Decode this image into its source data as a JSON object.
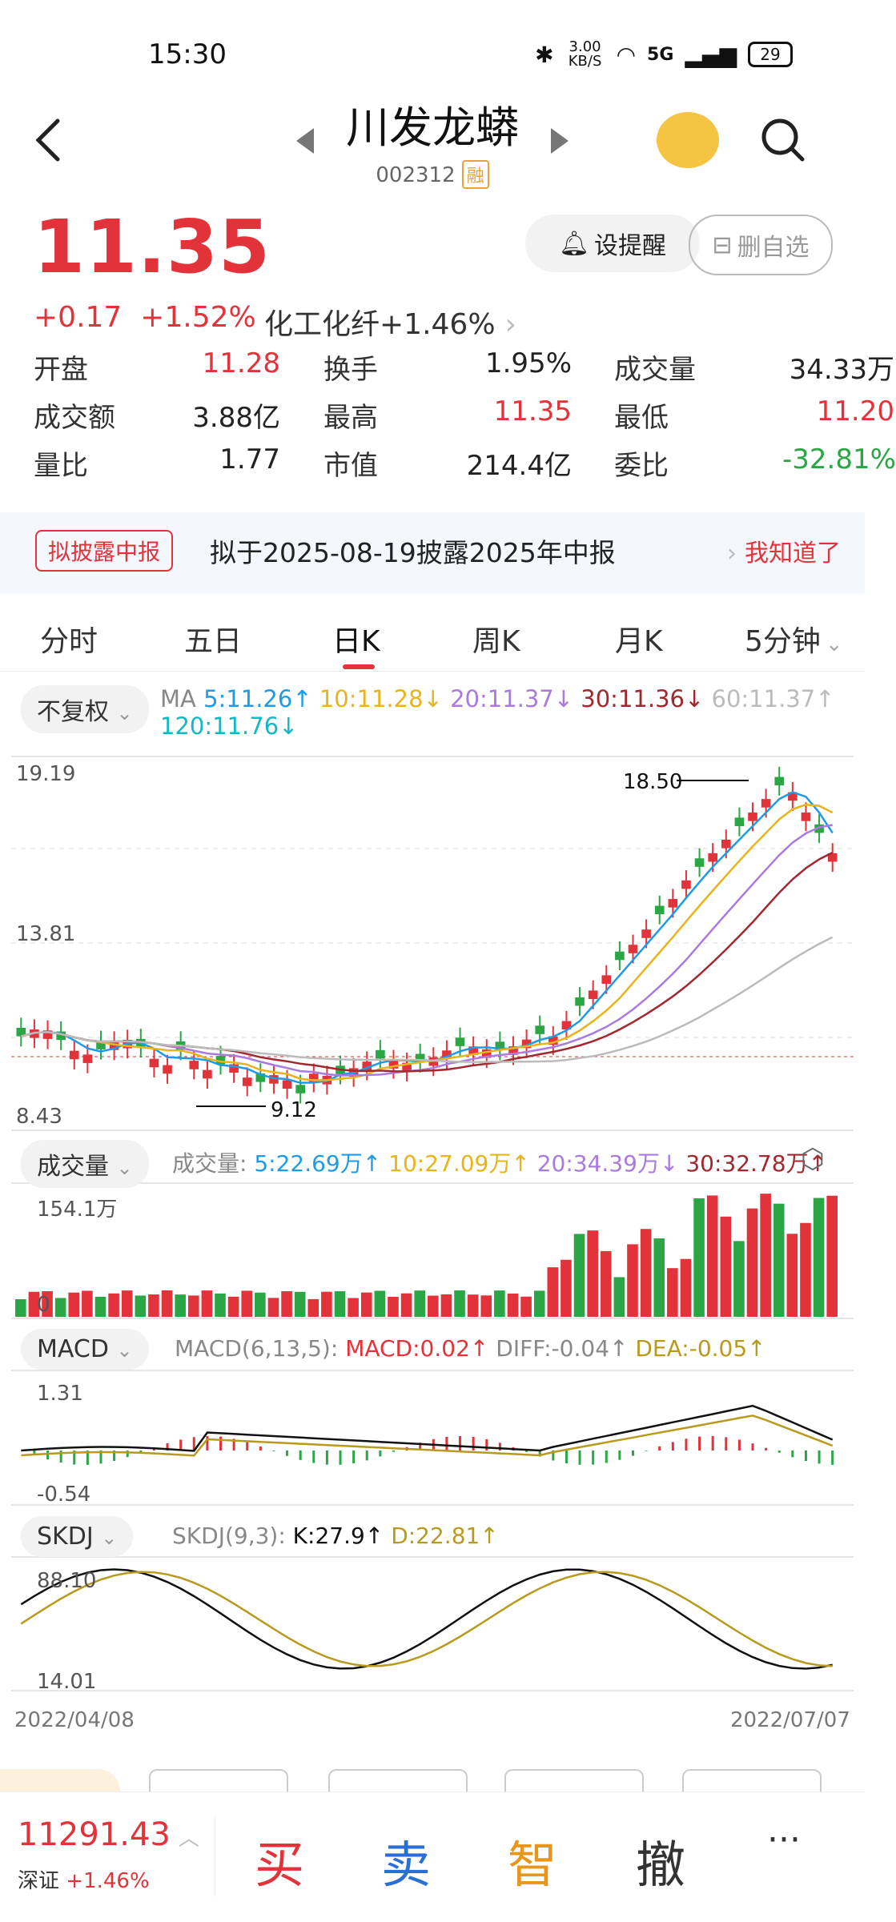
{
  "status_bar": {
    "time": "15:30",
    "speed": "3.00 KB/S",
    "network": "5G",
    "battery": "29"
  },
  "header": {
    "stock_name": "川发龙蟒",
    "stock_code": "002312",
    "margin_tag": "融"
  },
  "quote": {
    "price": "11.35",
    "change": "+0.17",
    "change_pct": "+1.52%",
    "sector": "化工化纤+1.46%"
  },
  "buttons": {
    "alert": "设提醒",
    "remove": "删自选"
  },
  "stats": [
    {
      "label": "开盘",
      "value": "11.28",
      "color": "#e2333a"
    },
    {
      "label": "换手",
      "value": "1.95%",
      "color": "#222"
    },
    {
      "label": "成交量",
      "value": "34.33万",
      "color": "#222"
    },
    {
      "label": "成交额",
      "value": "3.88亿",
      "color": "#222"
    },
    {
      "label": "最高",
      "value": "11.35",
      "color": "#e2333a"
    },
    {
      "label": "最低",
      "value": "11.20",
      "color": "#e2333a"
    },
    {
      "label": "量比",
      "value": "1.77",
      "color": "#222"
    },
    {
      "label": "市值",
      "value": "214.4亿",
      "color": "#222"
    },
    {
      "label": "委比",
      "value": "-32.81%",
      "color": "#2aa744"
    }
  ],
  "notice": {
    "tag": "拟披露中报",
    "text": "拟于2025-08-19披露2025年中报",
    "action": "我知道了"
  },
  "tabs": [
    "分时",
    "五日",
    "日K",
    "周K",
    "月K",
    "5分钟"
  ],
  "kline": {
    "adjust": "不复权",
    "ma_title": "MA",
    "ma": [
      {
        "label": "5:11.26↑",
        "color": "#1e9be8"
      },
      {
        "label": "10:11.28↓",
        "color": "#e8b41a"
      },
      {
        "label": "20:11.37↓",
        "color": "#a97ae0"
      },
      {
        "label": "30:11.36↓",
        "color": "#a0282e"
      },
      {
        "label": "60:11.37↑",
        "color": "#bbbbbb"
      },
      {
        "label": "120:11.76↓",
        "color": "#12b8c8"
      }
    ],
    "y_top": "19.19",
    "y_mid": "13.81",
    "y_bot": "8.43",
    "high_label": "18.50",
    "low_label": "9.12"
  },
  "volume": {
    "selector": "成交量",
    "title": "成交量:",
    "items": [
      {
        "label": "5:22.69万↑",
        "color": "#1e9be8"
      },
      {
        "label": "10:27.09万↑",
        "color": "#e8b41a"
      },
      {
        "label": "20:34.39万↓",
        "color": "#a97ae0"
      },
      {
        "label": "30:32.78万↑",
        "color": "#a0282e"
      }
    ],
    "max_label": "154.1万",
    "zero_label": "0"
  },
  "macd": {
    "selector": "MACD",
    "title": "MACD(6,13,5):",
    "macd": "MACD:0.02↑",
    "diff": "DIFF:-0.04↑",
    "dea": "DEA:-0.05↑",
    "y_top": "1.31",
    "y_bot": "-0.54"
  },
  "skdj": {
    "selector": "SKDJ",
    "title": "SKDJ(9,3):",
    "k": "K:27.9↑",
    "d": "D:22.81↑",
    "y_top": "88.10",
    "y_bot": "14.01"
  },
  "dates": {
    "start": "2022/04/08",
    "end": "2022/07/07"
  },
  "bottom_bar": {
    "index_value": "11291.43",
    "index_name": "深证",
    "index_change": "+1.46%",
    "buy": "买",
    "sell": "卖",
    "smart": "智",
    "cancel": "撤",
    "more": "···"
  }
}
